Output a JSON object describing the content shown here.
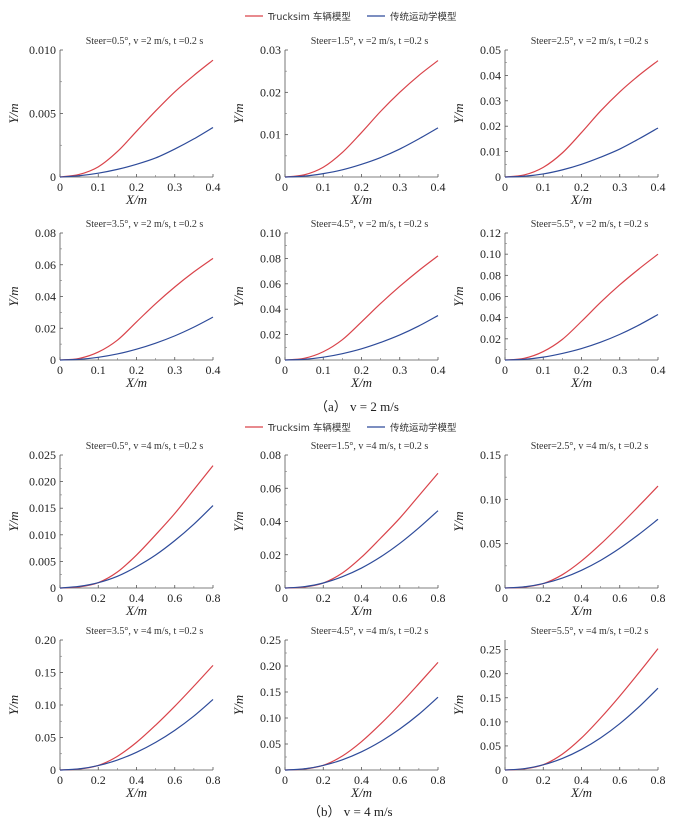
{
  "legend": {
    "items": [
      {
        "label": "Trucksim 车辆模型",
        "color": "#d9434a"
      },
      {
        "label": "传统运动学模型",
        "color": "#2e4b9a"
      }
    ]
  },
  "captions": {
    "a": "（a）  v = 2 m/s",
    "b": "（b）  v = 4 m/s"
  },
  "chart_data": [
    {
      "type": "line",
      "panel": "a1",
      "title": "Steer=0.5°, v =2  m/s, t =0.2  s",
      "xlabel": "X/m",
      "ylabel": "Y/m",
      "xlim": [
        0,
        0.4
      ],
      "ylim": [
        0,
        0.01
      ],
      "xticks": [
        "0",
        "0.1",
        "0.2",
        "0.3",
        "0.4"
      ],
      "yticks": [
        "0",
        "0.005",
        "0.010"
      ],
      "ytick_values": [
        0,
        0.005,
        0.01
      ],
      "x": [
        0,
        0.05,
        0.1,
        0.15,
        0.2,
        0.25,
        0.3,
        0.35,
        0.4
      ],
      "series": [
        {
          "name": "Trucksim 车辆模型",
          "values": [
            0,
            0.0002,
            0.0008,
            0.002,
            0.0036,
            0.0052,
            0.0067,
            0.008,
            0.0092
          ]
        },
        {
          "name": "传统运动学模型",
          "values": [
            0,
            0.0001,
            0.0003,
            0.0006,
            0.001,
            0.0015,
            0.0022,
            0.003,
            0.0039
          ]
        }
      ]
    },
    {
      "type": "line",
      "panel": "a2",
      "title": "Steer=1.5°, v =2  m/s, t =0.2  s",
      "xlabel": "X/m",
      "ylabel": "Y/m",
      "xlim": [
        0,
        0.4
      ],
      "ylim": [
        0,
        0.03
      ],
      "xticks": [
        "0",
        "0.1",
        "0.2",
        "0.3",
        "0.4"
      ],
      "yticks": [
        "0",
        "0.01",
        "0.02",
        "0.03"
      ],
      "ytick_values": [
        0,
        0.01,
        0.02,
        0.03
      ],
      "x": [
        0,
        0.05,
        0.1,
        0.15,
        0.2,
        0.25,
        0.3,
        0.35,
        0.4
      ],
      "series": [
        {
          "name": "Trucksim 车辆模型",
          "values": [
            0,
            0.0005,
            0.0023,
            0.0058,
            0.0105,
            0.0155,
            0.02,
            0.024,
            0.0275
          ]
        },
        {
          "name": "传统运动学模型",
          "values": [
            0,
            0.0002,
            0.0008,
            0.0017,
            0.003,
            0.0046,
            0.0066,
            0.009,
            0.0116
          ]
        }
      ]
    },
    {
      "type": "line",
      "panel": "a3",
      "title": "Steer=2.5°, v =2  m/s, t =0.2  s",
      "xlabel": "X/m",
      "ylabel": "Y/m",
      "xlim": [
        0,
        0.4
      ],
      "ylim": [
        0,
        0.05
      ],
      "xticks": [
        "0",
        "0.1",
        "0.2",
        "0.3",
        "0.4"
      ],
      "yticks": [
        "0",
        "0.01",
        "0.02",
        "0.03",
        "0.04",
        "0.05"
      ],
      "ytick_values": [
        0,
        0.01,
        0.02,
        0.03,
        0.04,
        0.05
      ],
      "x": [
        0,
        0.05,
        0.1,
        0.15,
        0.2,
        0.25,
        0.3,
        0.35,
        0.4
      ],
      "series": [
        {
          "name": "Trucksim 车辆模型",
          "values": [
            0,
            0.0008,
            0.0038,
            0.0095,
            0.0175,
            0.026,
            0.0335,
            0.04,
            0.0458
          ]
        },
        {
          "name": "传统运动学模型",
          "values": [
            0,
            0.0003,
            0.0012,
            0.0028,
            0.005,
            0.0078,
            0.011,
            0.015,
            0.0193
          ]
        }
      ]
    },
    {
      "type": "line",
      "panel": "a4",
      "title": "Steer=3.5°, v =2  m/s, t =0.2  s",
      "xlabel": "X/m",
      "ylabel": "Y/m",
      "xlim": [
        0,
        0.4
      ],
      "ylim": [
        0,
        0.08
      ],
      "xticks": [
        "0",
        "0.1",
        "0.2",
        "0.3",
        "0.4"
      ],
      "yticks": [
        "0",
        "0.02",
        "0.04",
        "0.06",
        "0.08"
      ],
      "ytick_values": [
        0,
        0.02,
        0.04,
        0.06,
        0.08
      ],
      "x": [
        0,
        0.05,
        0.1,
        0.15,
        0.2,
        0.25,
        0.3,
        0.35,
        0.4
      ],
      "series": [
        {
          "name": "Trucksim 车辆模型",
          "values": [
            0,
            0.001,
            0.005,
            0.0125,
            0.024,
            0.0355,
            0.046,
            0.0555,
            0.064
          ]
        },
        {
          "name": "传统运动学模型",
          "values": [
            0,
            0.0004,
            0.0017,
            0.0038,
            0.0068,
            0.0106,
            0.0152,
            0.0207,
            0.027
          ]
        }
      ]
    },
    {
      "type": "line",
      "panel": "a5",
      "title": "Steer=4.5°, v =2  m/s, t =0.2  s",
      "xlabel": "X/m",
      "ylabel": "Y/m",
      "xlim": [
        0,
        0.4
      ],
      "ylim": [
        0,
        0.1
      ],
      "xticks": [
        "0",
        "0.1",
        "0.2",
        "0.3",
        "0.4"
      ],
      "yticks": [
        "0",
        "0.02",
        "0.04",
        "0.06",
        "0.08",
        "0.10"
      ],
      "ytick_values": [
        0,
        0.02,
        0.04,
        0.06,
        0.08,
        0.1
      ],
      "x": [
        0,
        0.05,
        0.1,
        0.15,
        0.2,
        0.25,
        0.3,
        0.35,
        0.4
      ],
      "series": [
        {
          "name": "Trucksim 车辆模型",
          "values": [
            0,
            0.0013,
            0.0065,
            0.016,
            0.03,
            0.0445,
            0.058,
            0.0705,
            0.082
          ]
        },
        {
          "name": "传统运动学模型",
          "values": [
            0,
            0.0005,
            0.0022,
            0.005,
            0.0088,
            0.0138,
            0.0197,
            0.0268,
            0.035
          ]
        }
      ]
    },
    {
      "type": "line",
      "panel": "a6",
      "title": "Steer=5.5°, v =2  m/s, t =0.2  s",
      "xlabel": "X/m",
      "ylabel": "Y/m",
      "xlim": [
        0,
        0.4
      ],
      "ylim": [
        0,
        0.12
      ],
      "xticks": [
        "0",
        "0.1",
        "0.2",
        "0.3",
        "0.4"
      ],
      "yticks": [
        "0",
        "0.02",
        "0.04",
        "0.06",
        "0.08",
        "0.10",
        "0.12"
      ],
      "ytick_values": [
        0,
        0.02,
        0.04,
        0.06,
        0.08,
        0.1,
        0.12
      ],
      "x": [
        0,
        0.05,
        0.1,
        0.15,
        0.2,
        0.25,
        0.3,
        0.35,
        0.4
      ],
      "series": [
        {
          "name": "Trucksim 车辆模型",
          "values": [
            0,
            0.0016,
            0.008,
            0.0195,
            0.0365,
            0.0545,
            0.071,
            0.086,
            0.1
          ]
        },
        {
          "name": "传统运动学模型",
          "values": [
            0,
            0.0006,
            0.0027,
            0.0062,
            0.0108,
            0.0168,
            0.0242,
            0.033,
            0.043
          ]
        }
      ]
    },
    {
      "type": "line",
      "panel": "b1",
      "title": "Steer=0.5°, v =4  m/s, t =0.2  s",
      "xlabel": "X/m",
      "ylabel": "Y/m",
      "xlim": [
        0,
        0.8
      ],
      "ylim": [
        0,
        0.025
      ],
      "xticks": [
        "0",
        "0.2",
        "0.4",
        "0.6",
        "0.8"
      ],
      "yticks": [
        "0",
        "0.005",
        "0.010",
        "0.015",
        "0.020",
        "0.025"
      ],
      "ytick_values": [
        0,
        0.005,
        0.01,
        0.015,
        0.02,
        0.025
      ],
      "x": [
        0,
        0.1,
        0.2,
        0.3,
        0.4,
        0.5,
        0.6,
        0.7,
        0.8
      ],
      "series": [
        {
          "name": "Trucksim 车辆模型",
          "values": [
            0,
            0.0002,
            0.001,
            0.003,
            0.0062,
            0.01,
            0.014,
            0.0185,
            0.023
          ]
        },
        {
          "name": "传统运动学模型",
          "values": [
            0,
            0.0003,
            0.001,
            0.0022,
            0.004,
            0.0062,
            0.0089,
            0.012,
            0.0155
          ]
        }
      ]
    },
    {
      "type": "line",
      "panel": "b2",
      "title": "Steer=1.5°, v =4  m/s, t =0.2  s",
      "xlabel": "X/m",
      "ylabel": "Y/m",
      "xlim": [
        0,
        0.8
      ],
      "ylim": [
        0,
        0.08
      ],
      "xticks": [
        "0",
        "0.2",
        "0.4",
        "0.6",
        "0.8"
      ],
      "yticks": [
        "0",
        "0.02",
        "0.04",
        "0.06",
        "0.08"
      ],
      "ytick_values": [
        0,
        0.02,
        0.04,
        0.06,
        0.08
      ],
      "x": [
        0,
        0.1,
        0.2,
        0.3,
        0.4,
        0.5,
        0.6,
        0.7,
        0.8
      ],
      "series": [
        {
          "name": "Trucksim 车辆模型",
          "values": [
            0,
            0.0006,
            0.003,
            0.009,
            0.0185,
            0.03,
            0.042,
            0.0555,
            0.069
          ]
        },
        {
          "name": "传统运动学模型",
          "values": [
            0,
            0.0008,
            0.003,
            0.0068,
            0.012,
            0.0187,
            0.0268,
            0.0362,
            0.0465
          ]
        }
      ]
    },
    {
      "type": "line",
      "panel": "b3",
      "title": "Steer=2.5°, v =4  m/s, t =0.2  s",
      "xlabel": "X/m",
      "ylabel": "Y/m",
      "xlim": [
        0,
        0.8
      ],
      "ylim": [
        0,
        0.15
      ],
      "xticks": [
        "0",
        "0.2",
        "0.4",
        "0.6",
        "0.8"
      ],
      "yticks": [
        "0",
        "0.05",
        "0.10",
        "0.15"
      ],
      "ytick_values": [
        0,
        0.05,
        0.1,
        0.15
      ],
      "x": [
        0,
        0.1,
        0.2,
        0.3,
        0.4,
        0.5,
        0.6,
        0.7,
        0.8
      ],
      "series": [
        {
          "name": "Trucksim 车辆模型",
          "values": [
            0,
            0.001,
            0.005,
            0.015,
            0.0305,
            0.0495,
            0.0705,
            0.0925,
            0.115
          ]
        },
        {
          "name": "传统运动学模型",
          "values": [
            0,
            0.0013,
            0.005,
            0.0112,
            0.02,
            0.0312,
            0.0448,
            0.0605,
            0.0775
          ]
        }
      ]
    },
    {
      "type": "line",
      "panel": "b4",
      "title": "Steer=3.5°, v =4  m/s, t =0.2  s",
      "xlabel": "X/m",
      "ylabel": "Y/m",
      "xlim": [
        0,
        0.8
      ],
      "ylim": [
        0,
        0.2
      ],
      "xticks": [
        "0",
        "0.2",
        "0.4",
        "0.6",
        "0.8"
      ],
      "yticks": [
        "0",
        "0.05",
        "0.10",
        "0.15",
        "0.20"
      ],
      "ytick_values": [
        0,
        0.05,
        0.1,
        0.15,
        0.2
      ],
      "x": [
        0,
        0.1,
        0.2,
        0.3,
        0.4,
        0.5,
        0.6,
        0.7,
        0.8
      ],
      "series": [
        {
          "name": "Trucksim 车辆模型",
          "values": [
            0,
            0.0014,
            0.007,
            0.021,
            0.0425,
            0.069,
            0.098,
            0.129,
            0.161
          ]
        },
        {
          "name": "传统运动学模型",
          "values": [
            0,
            0.0017,
            0.0068,
            0.0153,
            0.0272,
            0.0425,
            0.061,
            0.083,
            0.1085
          ]
        }
      ]
    },
    {
      "type": "line",
      "panel": "b5",
      "title": "Steer=4.5°, v =4  m/s, t =0.2  s",
      "xlabel": "X/m",
      "ylabel": "Y/m",
      "xlim": [
        0,
        0.8
      ],
      "ylim": [
        0,
        0.25
      ],
      "xticks": [
        "0",
        "0.2",
        "0.4",
        "0.6",
        "0.8"
      ],
      "yticks": [
        "0",
        "0.05",
        "0.10",
        "0.15",
        "0.20",
        "0.25"
      ],
      "ytick_values": [
        0,
        0.05,
        0.1,
        0.15,
        0.2,
        0.25
      ],
      "x": [
        0,
        0.1,
        0.2,
        0.3,
        0.4,
        0.5,
        0.6,
        0.7,
        0.8
      ],
      "series": [
        {
          "name": "Trucksim 车辆模型",
          "values": [
            0,
            0.0018,
            0.009,
            0.027,
            0.0545,
            0.0885,
            0.126,
            0.166,
            0.207
          ]
        },
        {
          "name": "传统运动学模型",
          "values": [
            0,
            0.0022,
            0.0088,
            0.0197,
            0.035,
            0.0548,
            0.0788,
            0.1072,
            0.14
          ]
        }
      ]
    },
    {
      "type": "line",
      "panel": "b6",
      "title": "Steer=5.5°, v =4  m/s, t =0.2  s",
      "xlabel": "X/m",
      "ylabel": "Y/m",
      "xlim": [
        0,
        0.8
      ],
      "ylim": [
        0,
        0.27
      ],
      "xticks": [
        "0",
        "0.2",
        "0.4",
        "0.6",
        "0.8"
      ],
      "yticks": [
        "0",
        "0.05",
        "0.10",
        "0.15",
        "0.20",
        "0.25"
      ],
      "ytick_values": [
        0,
        0.05,
        0.1,
        0.15,
        0.2,
        0.25
      ],
      "x": [
        0,
        0.1,
        0.2,
        0.3,
        0.4,
        0.5,
        0.6,
        0.7,
        0.8
      ],
      "series": [
        {
          "name": "Trucksim 车辆模型",
          "values": [
            0,
            0.0022,
            0.011,
            0.033,
            0.0665,
            0.108,
            0.1535,
            0.202,
            0.252
          ]
        },
        {
          "name": "传统运动学模型",
          "values": [
            0,
            0.0027,
            0.0107,
            0.024,
            0.0427,
            0.0668,
            0.0962,
            0.131,
            0.17
          ]
        }
      ]
    }
  ]
}
